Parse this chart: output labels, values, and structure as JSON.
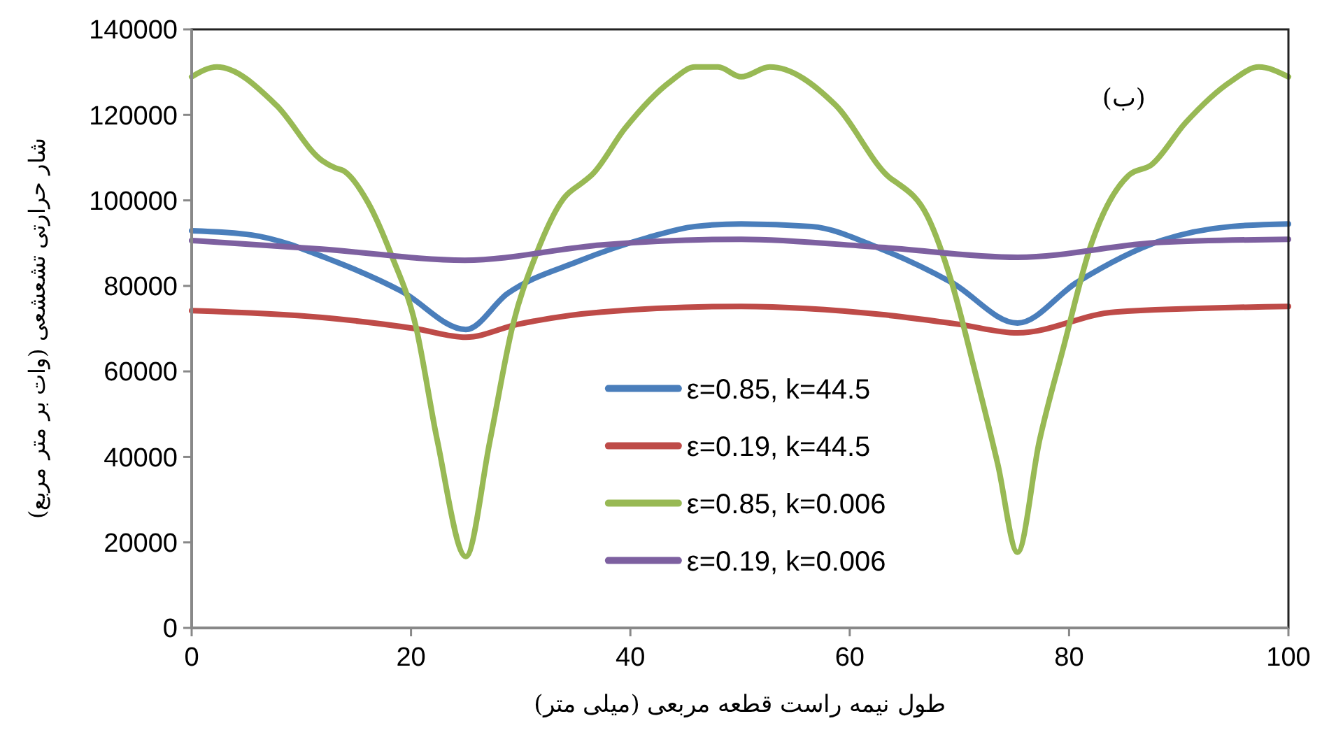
{
  "chart_data": {
    "type": "line",
    "xlabel": "طول نیمه راست قطعه مربعی (میلی متر)",
    "ylabel": "شار حرارتی تشعشعی (وات بر متر مربع)",
    "annotations": [
      "(ب)"
    ],
    "xlim": [
      0,
      100
    ],
    "xticks": [
      0,
      20,
      40,
      60,
      80,
      100
    ],
    "ylim": [
      0,
      140000
    ],
    "yticks": [
      0,
      20000,
      40000,
      60000,
      80000,
      100000,
      120000,
      140000
    ],
    "grid": false,
    "legend": "bottom",
    "marker": "none",
    "line_style": "solid",
    "series": [
      {
        "name": "ε=0.85, k=44.5",
        "color": "#4a7ebb",
        "x": [
          0,
          5.5,
          13.1,
          19.1,
          25,
          28.8,
          35.2,
          41.6,
          45.9,
          50.1,
          56.5,
          62.9,
          69.3,
          75.3,
          80.7,
          88.4,
          94.8,
          100
        ],
        "values": [
          92900,
          91900,
          85700,
          78800,
          69800,
          78200,
          85700,
          91300,
          93900,
          94500,
          93900,
          88600,
          80800,
          71300,
          80800,
          90600,
          93900,
          94500
        ]
      },
      {
        "name": "ε=0.19, k=44.5",
        "color": "#be4b48",
        "x": [
          0,
          11.9,
          20.4,
          25,
          29.7,
          37.4,
          50.1,
          62.9,
          70,
          75.3,
          84.2,
          100
        ],
        "values": [
          74200,
          72600,
          70000,
          68000,
          71000,
          73900,
          75200,
          73300,
          71000,
          69000,
          73900,
          75200
        ]
      },
      {
        "name": "ε=0.85, k=0.006",
        "color": "#98b954",
        "x": [
          0,
          2.3,
          7.7,
          11.9,
          13.1,
          13.8,
          16.1,
          18.2,
          20.4,
          22.4,
          25,
          27.2,
          29.3,
          31.4,
          33.9,
          35.7,
          36.5,
          39.5,
          43.7,
          45.9,
          48,
          50.1,
          52.7,
          58.7,
          63.8,
          64.2,
          67.1,
          69.3,
          71.4,
          73.5,
          75.3,
          77.3,
          79.5,
          82,
          85.5,
          87.5,
          90.6,
          94.8,
          97.3,
          100
        ],
        "values": [
          128900,
          131200,
          122300,
          109300,
          107600,
          107000,
          99400,
          87300,
          71000,
          43800,
          16700,
          43800,
          71000,
          87300,
          100400,
          104300,
          106000,
          116800,
          127900,
          131200,
          131200,
          128900,
          131200,
          122300,
          105000,
          104300,
          96200,
          80800,
          60200,
          38300,
          17700,
          43800,
          65700,
          89600,
          106000,
          108300,
          118100,
          127900,
          131200,
          128900
        ]
      },
      {
        "name": "ε=0.19, k=0.006",
        "color": "#7d60a0",
        "x": [
          0,
          11.9,
          24.9,
          37.4,
          50.1,
          62.9,
          75.3,
          88.4,
          100
        ],
        "values": [
          90600,
          88600,
          86000,
          89600,
          90900,
          89000,
          86700,
          90200,
          90900
        ]
      }
    ]
  }
}
